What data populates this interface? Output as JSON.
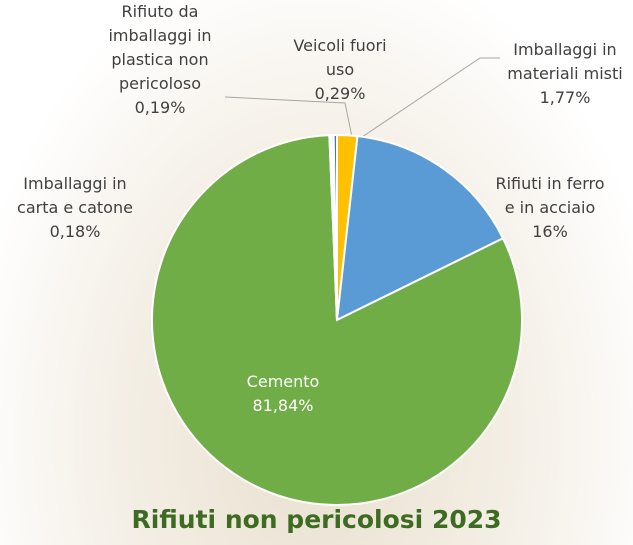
{
  "chart_data": {
    "type": "pie",
    "title": "Rifiuti non pericolosi 2023",
    "categories": [
      "Imballaggi in materiali misti",
      "Rifiuti in ferro e in acciaio",
      "Cemento",
      "Imballaggi in carta e catone",
      "Rifiuto da imballaggi in plastica non pericoloso",
      "Veicoli fuori uso"
    ],
    "values": [
      1.77,
      16,
      81.84,
      0.18,
      0.19,
      0.29
    ],
    "value_labels": [
      "1,77%",
      "16%",
      "81,84%",
      "0,18%",
      "0,19%",
      "0,29%"
    ],
    "colors": [
      "#ffc000",
      "#5b9bd5",
      "#70ad47",
      "#a5a5a5",
      "#ed7d31",
      "#4472c4"
    ]
  }
}
